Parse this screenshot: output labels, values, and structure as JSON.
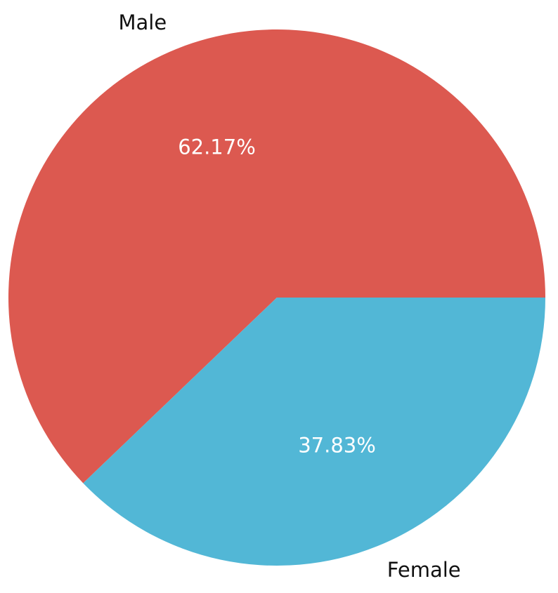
{
  "chart_data": {
    "type": "pie",
    "title": "",
    "categories": [
      "Male",
      "Female"
    ],
    "values": [
      62.17,
      37.83
    ],
    "percent_labels": [
      "62.17%",
      "37.83%"
    ],
    "colors": [
      "#dc5950",
      "#52b7d6"
    ],
    "start_angle_deg": 0,
    "direction": "counterclockwise",
    "legend": "none"
  }
}
